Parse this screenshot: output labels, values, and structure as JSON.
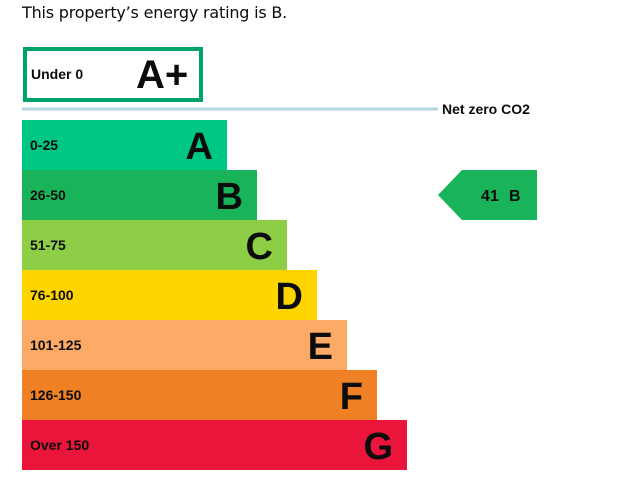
{
  "intro_text": "This property’s energy rating is B.",
  "chart_data": {
    "type": "bar",
    "title": "",
    "top_band": {
      "range": "Under 0",
      "letter": "A+",
      "color": "#00a26b"
    },
    "net_zero_label": "Net zero CO2",
    "bands": [
      {
        "range": "0-25",
        "letter": "A",
        "color": "#00c781",
        "text_color": "#0b0c0c"
      },
      {
        "range": "26-50",
        "letter": "B",
        "color": "#19b459",
        "text_color": "#0b0c0c"
      },
      {
        "range": "51-75",
        "letter": "C",
        "color": "#8dce46",
        "text_color": "#0b0c0c"
      },
      {
        "range": "76-100",
        "letter": "D",
        "color": "#ffd500",
        "text_color": "#0b0c0c"
      },
      {
        "range": "101-125",
        "letter": "E",
        "color": "#fcaa65",
        "text_color": "#0b0c0c"
      },
      {
        "range": "126-150",
        "letter": "F",
        "color": "#ef8023",
        "text_color": "#0b0c0c"
      },
      {
        "range": "Over 150",
        "letter": "G",
        "color": "#e9153b",
        "text_color": "#0b0c0c"
      }
    ],
    "current_rating": {
      "value": 41,
      "letter": "B",
      "band_index": 1,
      "color": "#19b459"
    }
  }
}
